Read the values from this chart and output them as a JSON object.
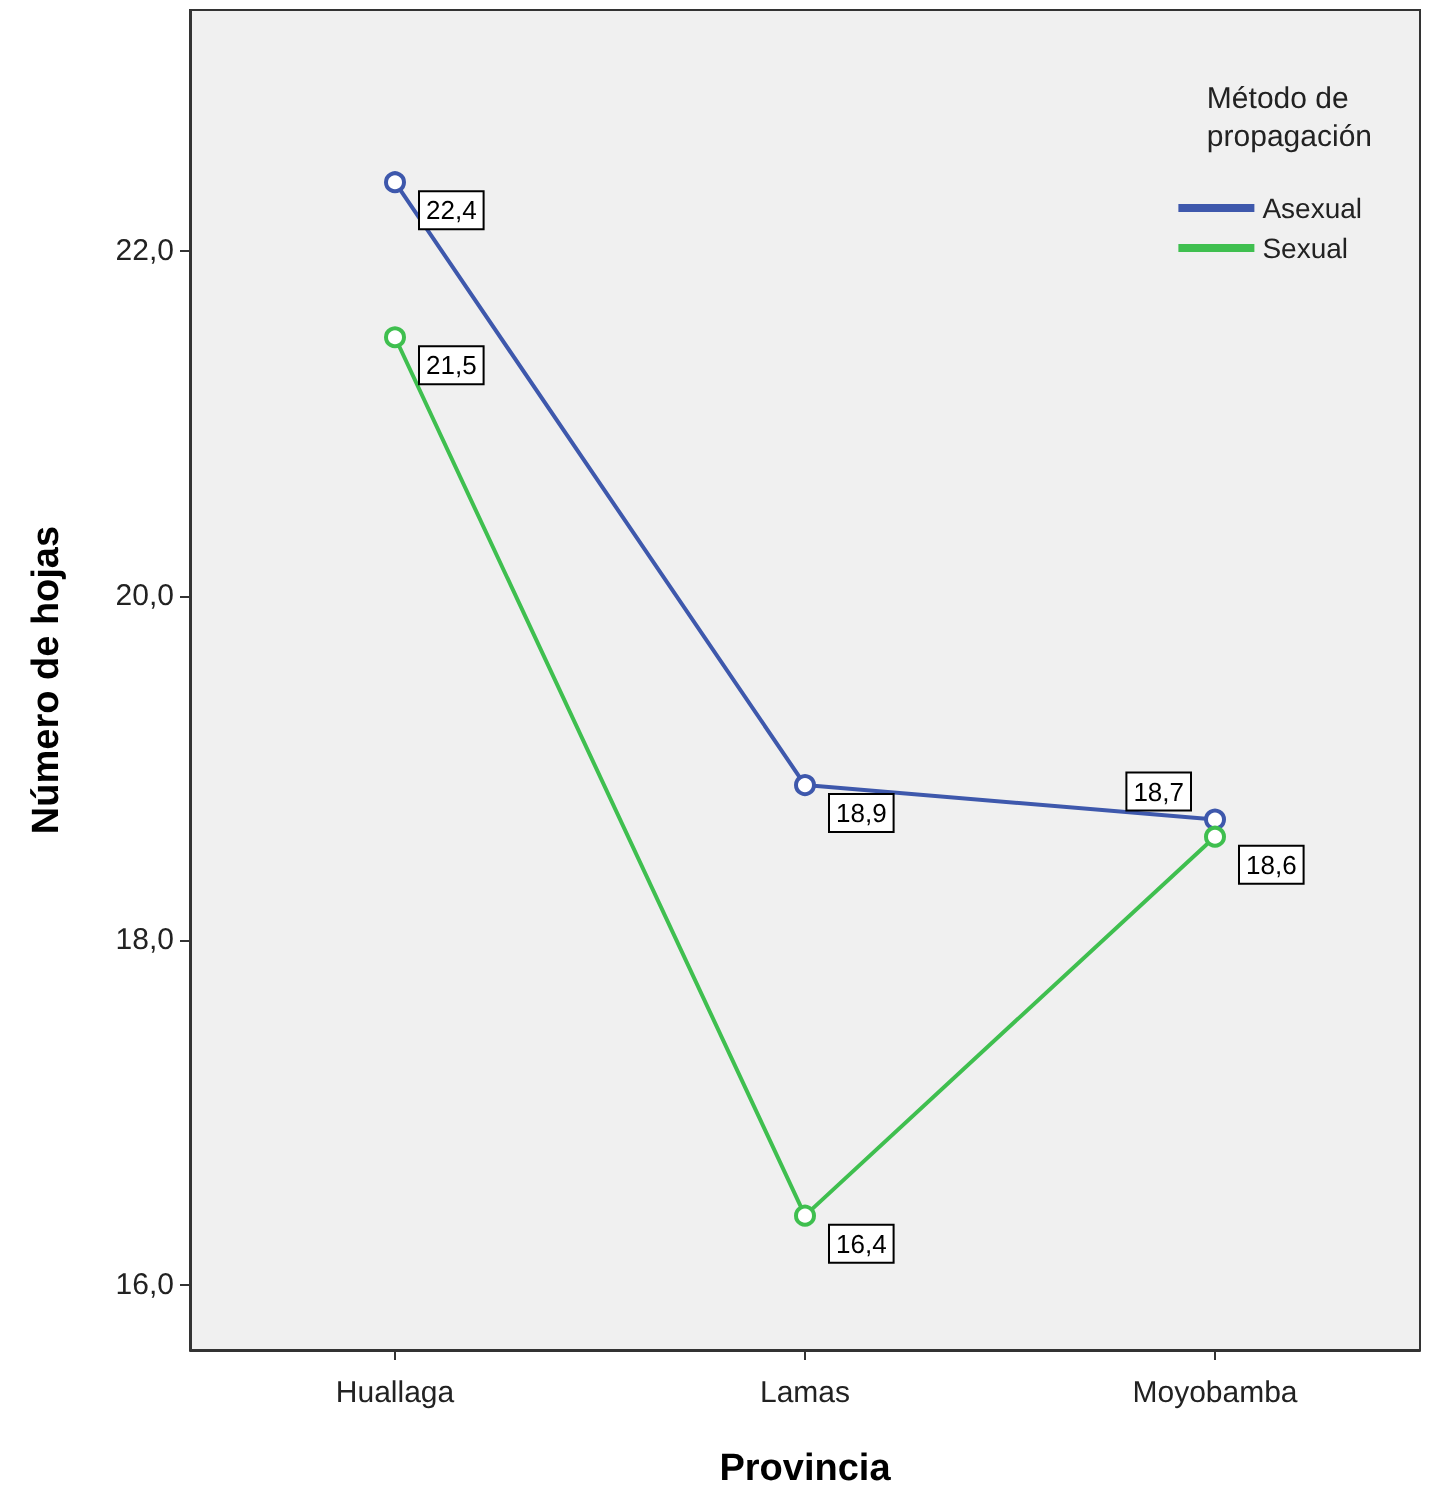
{
  "chart_data": {
    "type": "line",
    "xlabel": "Provincia",
    "ylabel": "Número de hojas",
    "legend_title": "Método de propagación",
    "categories": [
      "Huallaga",
      "Lamas",
      "Moyobamba"
    ],
    "series": [
      {
        "name": "Asexual",
        "color": "#3e58ac",
        "values": [
          22.4,
          18.9,
          18.7
        ],
        "value_labels": [
          "22,4",
          "18,9",
          "18,7"
        ]
      },
      {
        "name": "Sexual",
        "color": "#3fbf4f",
        "values": [
          21.5,
          16.4,
          18.6
        ],
        "value_labels": [
          "21,5",
          "16,4",
          "18,6"
        ]
      }
    ],
    "ylim": [
      15.62,
      23.4
    ],
    "yticks": [
      {
        "value": 16,
        "label": "16,0"
      },
      {
        "value": 18,
        "label": "18,0"
      },
      {
        "value": 20,
        "label": "20,0"
      },
      {
        "value": 22,
        "label": "22,0"
      }
    ],
    "grid": false,
    "legend": "top right",
    "marker": "circle",
    "line_style": "solid"
  }
}
